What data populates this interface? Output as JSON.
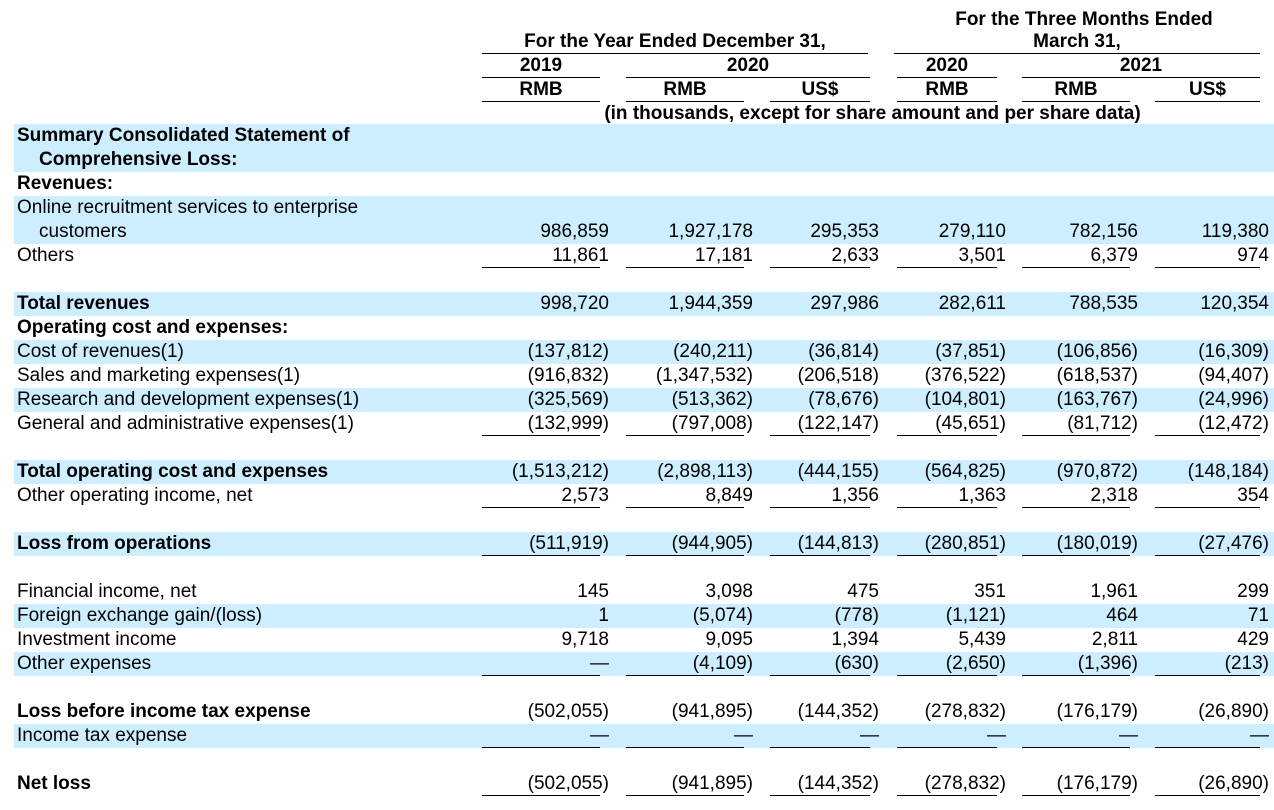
{
  "header": {
    "year_group": "For the Year Ended December 31,",
    "quarter_group_line1": "For the Three Months Ended",
    "quarter_group_line2": "March 31,",
    "year_2019": "2019",
    "year_2020": "2020",
    "q_2020": "2020",
    "q_2021": "2021",
    "cur_c1": "RMB",
    "cur_c2": "RMB",
    "cur_c3": "US$",
    "cur_c4": "RMB",
    "cur_c5": "RMB",
    "cur_c6": "US$",
    "units_note": "(in thousands, except for share amount and per share data)"
  },
  "rows": [
    {
      "label": "Summary Consolidated Statement of",
      "label2": "Comprehensive Loss:",
      "bold": true
    },
    {
      "label": "Revenues:",
      "bold": true
    },
    {
      "label": "Online recruitment services to enterprise",
      "label2": "customers",
      "values": [
        "986,859",
        "1,927,178",
        "295,353",
        "279,110",
        "782,156",
        "119,380"
      ]
    },
    {
      "label": "Others",
      "values": [
        "11,861",
        "17,181",
        "2,633",
        "3,501",
        "6,379",
        "974"
      ]
    },
    {
      "label": "Total revenues",
      "bold": true,
      "values": [
        "998,720",
        "1,944,359",
        "297,986",
        "282,611",
        "788,535",
        "120,354"
      ]
    },
    {
      "label": "Operating cost and expenses:",
      "bold": true
    },
    {
      "label": "Cost of revenues(1)",
      "values": [
        "(137,812)",
        "(240,211)",
        "(36,814)",
        "(37,851)",
        "(106,856)",
        "(16,309)"
      ]
    },
    {
      "label": "Sales and marketing expenses(1)",
      "values": [
        "(916,832)",
        "(1,347,532)",
        "(206,518)",
        "(376,522)",
        "(618,537)",
        "(94,407)"
      ]
    },
    {
      "label": "Research and development expenses(1)",
      "values": [
        "(325,569)",
        "(513,362)",
        "(78,676)",
        "(104,801)",
        "(163,767)",
        "(24,996)"
      ]
    },
    {
      "label": "General and administrative expenses(1)",
      "values": [
        "(132,999)",
        "(797,008)",
        "(122,147)",
        "(45,651)",
        "(81,712)",
        "(12,472)"
      ]
    },
    {
      "label": "Total operating cost and expenses",
      "bold": true,
      "values": [
        "(1,513,212)",
        "(2,898,113)",
        "(444,155)",
        "(564,825)",
        "(970,872)",
        "(148,184)"
      ]
    },
    {
      "label": "Other operating income, net",
      "values": [
        "2,573",
        "8,849",
        "1,356",
        "1,363",
        "2,318",
        "354"
      ]
    },
    {
      "label": "Loss from operations",
      "bold": true,
      "values": [
        "(511,919)",
        "(944,905)",
        "(144,813)",
        "(280,851)",
        "(180,019)",
        "(27,476)"
      ]
    },
    {
      "label": "Financial income, net",
      "values": [
        "145",
        "3,098",
        "475",
        "351",
        "1,961",
        "299"
      ]
    },
    {
      "label": "Foreign exchange gain/(loss)",
      "values": [
        "1",
        "(5,074)",
        "(778)",
        "(1,121)",
        "464",
        "71"
      ]
    },
    {
      "label": "Investment income",
      "values": [
        "9,718",
        "9,095",
        "1,394",
        "5,439",
        "2,811",
        "429"
      ]
    },
    {
      "label": "Other expenses",
      "values": [
        "—",
        "(4,109)",
        "(630)",
        "(2,650)",
        "(1,396)",
        "(213)"
      ]
    },
    {
      "label": "Loss before income tax expense",
      "bold": true,
      "values": [
        "(502,055)",
        "(941,895)",
        "(144,352)",
        "(278,832)",
        "(176,179)",
        "(26,890)"
      ]
    },
    {
      "label": "Income tax expense",
      "values": [
        "—",
        "—",
        "—",
        "—",
        "—",
        "—"
      ]
    },
    {
      "label": "Net loss",
      "bold": true,
      "values": [
        "(502,055)",
        "(941,895)",
        "(144,352)",
        "(278,832)",
        "(176,179)",
        "(26,890)"
      ]
    }
  ]
}
